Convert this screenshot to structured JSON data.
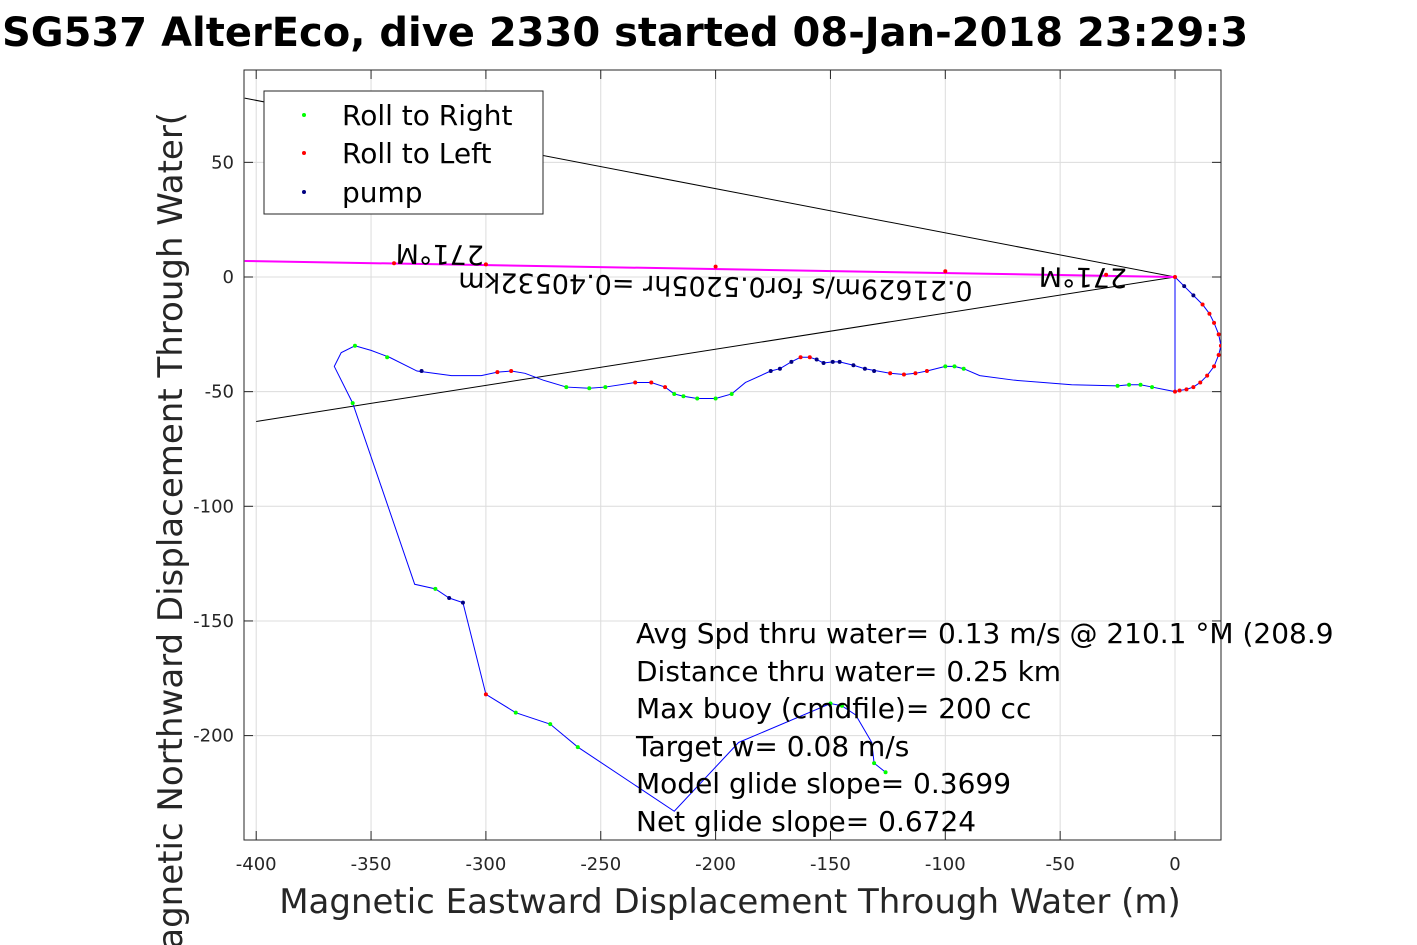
{
  "chart_data": {
    "type": "line",
    "title": "SG537 AlterEco, dive 2330 started 08-Jan-2018 23:29:3",
    "xlabel": "Magnetic Eastward Displacement Through Water (m)",
    "ylabel": "Magnetic Northward Displacement Through Water(",
    "xlim": [
      -405,
      20
    ],
    "ylim": [
      -245,
      90
    ],
    "xticks": [
      -400,
      -350,
      -300,
      -250,
      -200,
      -150,
      -100,
      -50,
      0
    ],
    "yticks": [
      50,
      0,
      -50,
      -100,
      -150,
      -200
    ],
    "grid": true,
    "legend_position": "top-left",
    "legend": [
      {
        "label": "Roll to Right",
        "color": "#00ff00"
      },
      {
        "label": "Roll to Left",
        "color": "#ff0000"
      },
      {
        "label": "pump",
        "color": "#000080"
      }
    ],
    "track_color": "#0000ff",
    "current_color": "#ff00ff",
    "track": [
      [
        0,
        -50
      ],
      [
        2,
        -49.5
      ],
      [
        5,
        -49
      ],
      [
        8,
        -48
      ],
      [
        11,
        -46
      ],
      [
        14,
        -43
      ],
      [
        17,
        -39
      ],
      [
        19,
        -34
      ],
      [
        20,
        -30
      ],
      [
        19,
        -25
      ],
      [
        17,
        -20
      ],
      [
        15,
        -16
      ],
      [
        12,
        -12
      ],
      [
        8,
        -8
      ],
      [
        4,
        -4
      ],
      [
        0,
        0
      ],
      [
        0,
        -50
      ],
      [
        -5,
        -49
      ],
      [
        -10,
        -48
      ],
      [
        -15,
        -47
      ],
      [
        -20,
        -47
      ],
      [
        -25,
        -47.5
      ],
      [
        -45,
        -47
      ],
      [
        -70,
        -45
      ],
      [
        -85,
        -43
      ],
      [
        -92,
        -40
      ],
      [
        -96,
        -39
      ],
      [
        -100,
        -39
      ],
      [
        -108,
        -41
      ],
      [
        -113,
        -42
      ],
      [
        -118,
        -42.5
      ],
      [
        -124,
        -42
      ],
      [
        -135,
        -40
      ],
      [
        -140,
        -38.5
      ],
      [
        -146,
        -37
      ],
      [
        -149,
        -37
      ],
      [
        -153,
        -37.5
      ],
      [
        -156,
        -36
      ],
      [
        -159,
        -35
      ],
      [
        -163,
        -35
      ],
      [
        -167,
        -37
      ],
      [
        -172,
        -40
      ],
      [
        -176,
        -41
      ],
      [
        -187,
        -46
      ],
      [
        -193,
        -51
      ],
      [
        -200,
        -53
      ],
      [
        -208,
        -53
      ],
      [
        -214,
        -52
      ],
      [
        -218,
        -51
      ],
      [
        -222,
        -48
      ],
      [
        -228,
        -46
      ],
      [
        -235,
        -46
      ],
      [
        -248,
        -48
      ],
      [
        -255,
        -48.5
      ],
      [
        -265,
        -48
      ],
      [
        -275,
        -45
      ],
      [
        -283,
        -42
      ],
      [
        -289,
        -41
      ],
      [
        -295,
        -41.5
      ],
      [
        -302,
        -43
      ],
      [
        -315,
        -43
      ],
      [
        -330,
        -41
      ],
      [
        -342,
        -35
      ],
      [
        -350,
        -32
      ],
      [
        -357,
        -30
      ],
      [
        -363,
        -33
      ],
      [
        -366,
        -39
      ],
      [
        -358,
        -55
      ],
      [
        -331,
        -134
      ],
      [
        -322,
        -136
      ],
      [
        -316,
        -140
      ],
      [
        -310,
        -142
      ],
      [
        -300,
        -182
      ],
      [
        -287,
        -190
      ],
      [
        -272,
        -195
      ],
      [
        -260,
        -205
      ],
      [
        -218,
        -233
      ],
      [
        -190,
        -203
      ],
      [
        -150,
        -186
      ],
      [
        -145,
        -187
      ],
      [
        -139,
        -191
      ],
      [
        -132,
        -203
      ],
      [
        -131,
        -212
      ],
      [
        -126,
        -216
      ]
    ],
    "current_line": [
      [
        -405,
        7
      ],
      [
        0,
        0
      ]
    ],
    "bearing_lines": [
      [
        [
          -405,
          78
        ],
        [
          0,
          0
        ]
      ],
      [
        [
          -400,
          -63
        ],
        [
          0,
          0
        ]
      ]
    ],
    "roll_right": [
      [
        -126,
        -216
      ],
      [
        -131,
        -212
      ],
      [
        -145,
        -187
      ],
      [
        -150,
        -186
      ],
      [
        -260,
        -205
      ],
      [
        -272,
        -195
      ],
      [
        -287,
        -190
      ],
      [
        -322,
        -136
      ],
      [
        -358,
        -55
      ],
      [
        -357,
        -30
      ],
      [
        -343,
        -35
      ],
      [
        -248,
        -48
      ],
      [
        -255,
        -48.5
      ],
      [
        -265,
        -48
      ],
      [
        -218,
        -51
      ],
      [
        -214,
        -52
      ],
      [
        -208,
        -53
      ],
      [
        -200,
        -53
      ],
      [
        -193,
        -51
      ],
      [
        -96,
        -39
      ],
      [
        -92,
        -40
      ],
      [
        -100,
        -39
      ],
      [
        -20,
        -47
      ],
      [
        -15,
        -47
      ],
      [
        -10,
        -48
      ],
      [
        -25,
        -47.5
      ]
    ],
    "roll_left": [
      [
        -300,
        -182
      ],
      [
        -289,
        -41
      ],
      [
        -295,
        -41.5
      ],
      [
        -235,
        -46
      ],
      [
        -228,
        -46
      ],
      [
        -222,
        -48
      ],
      [
        -124,
        -42
      ],
      [
        -118,
        -42.5
      ],
      [
        -113,
        -42
      ],
      [
        -108,
        -41
      ],
      [
        -159,
        -35
      ],
      [
        -163,
        -35
      ],
      [
        0,
        -50
      ],
      [
        2,
        -49.5
      ],
      [
        5,
        -49
      ],
      [
        8,
        -48
      ],
      [
        11,
        -46
      ],
      [
        14,
        -43
      ],
      [
        17,
        -39
      ],
      [
        19,
        -34
      ],
      [
        20,
        -30
      ],
      [
        19,
        -25
      ],
      [
        17,
        -20
      ],
      [
        15,
        -16
      ],
      [
        12,
        -12
      ],
      [
        0,
        0
      ],
      [
        -30,
        1
      ],
      [
        -100,
        2.5
      ],
      [
        -200,
        4.5
      ],
      [
        -300,
        5.5
      ],
      [
        -340,
        6
      ]
    ],
    "pump": [
      [
        -316,
        -140
      ],
      [
        -310,
        -142
      ],
      [
        -176,
        -41
      ],
      [
        -172,
        -40
      ],
      [
        -167,
        -37
      ],
      [
        -156,
        -36
      ],
      [
        -153,
        -37.5
      ],
      [
        -149,
        -37
      ],
      [
        -146,
        -37
      ],
      [
        -140,
        -38.5
      ],
      [
        -135,
        -40
      ],
      [
        -131,
        -41
      ],
      [
        -328,
        -41
      ],
      [
        8,
        -8
      ],
      [
        4,
        -4
      ]
    ],
    "annotations": [
      {
        "text": "271°M",
        "x": -320,
        "y": 14,
        "rotated": true
      },
      {
        "text": "271°M",
        "x": -40,
        "y": 4,
        "rotated": true
      },
      {
        "text": "0.21629m/s for0.5205hr =0.40532km",
        "x": -200,
        "y": 0,
        "rotated": true
      }
    ],
    "stats": [
      "Avg Spd thru water=  0.13 m/s @ 210.1 °M (208.9",
      "Distance thru water=  0.25 km",
      "Max buoy (cmdfile)= 200 cc",
      "Target w= 0.08 m/s",
      "Model glide slope= 0.3699",
      "Net glide slope= 0.6724"
    ]
  }
}
